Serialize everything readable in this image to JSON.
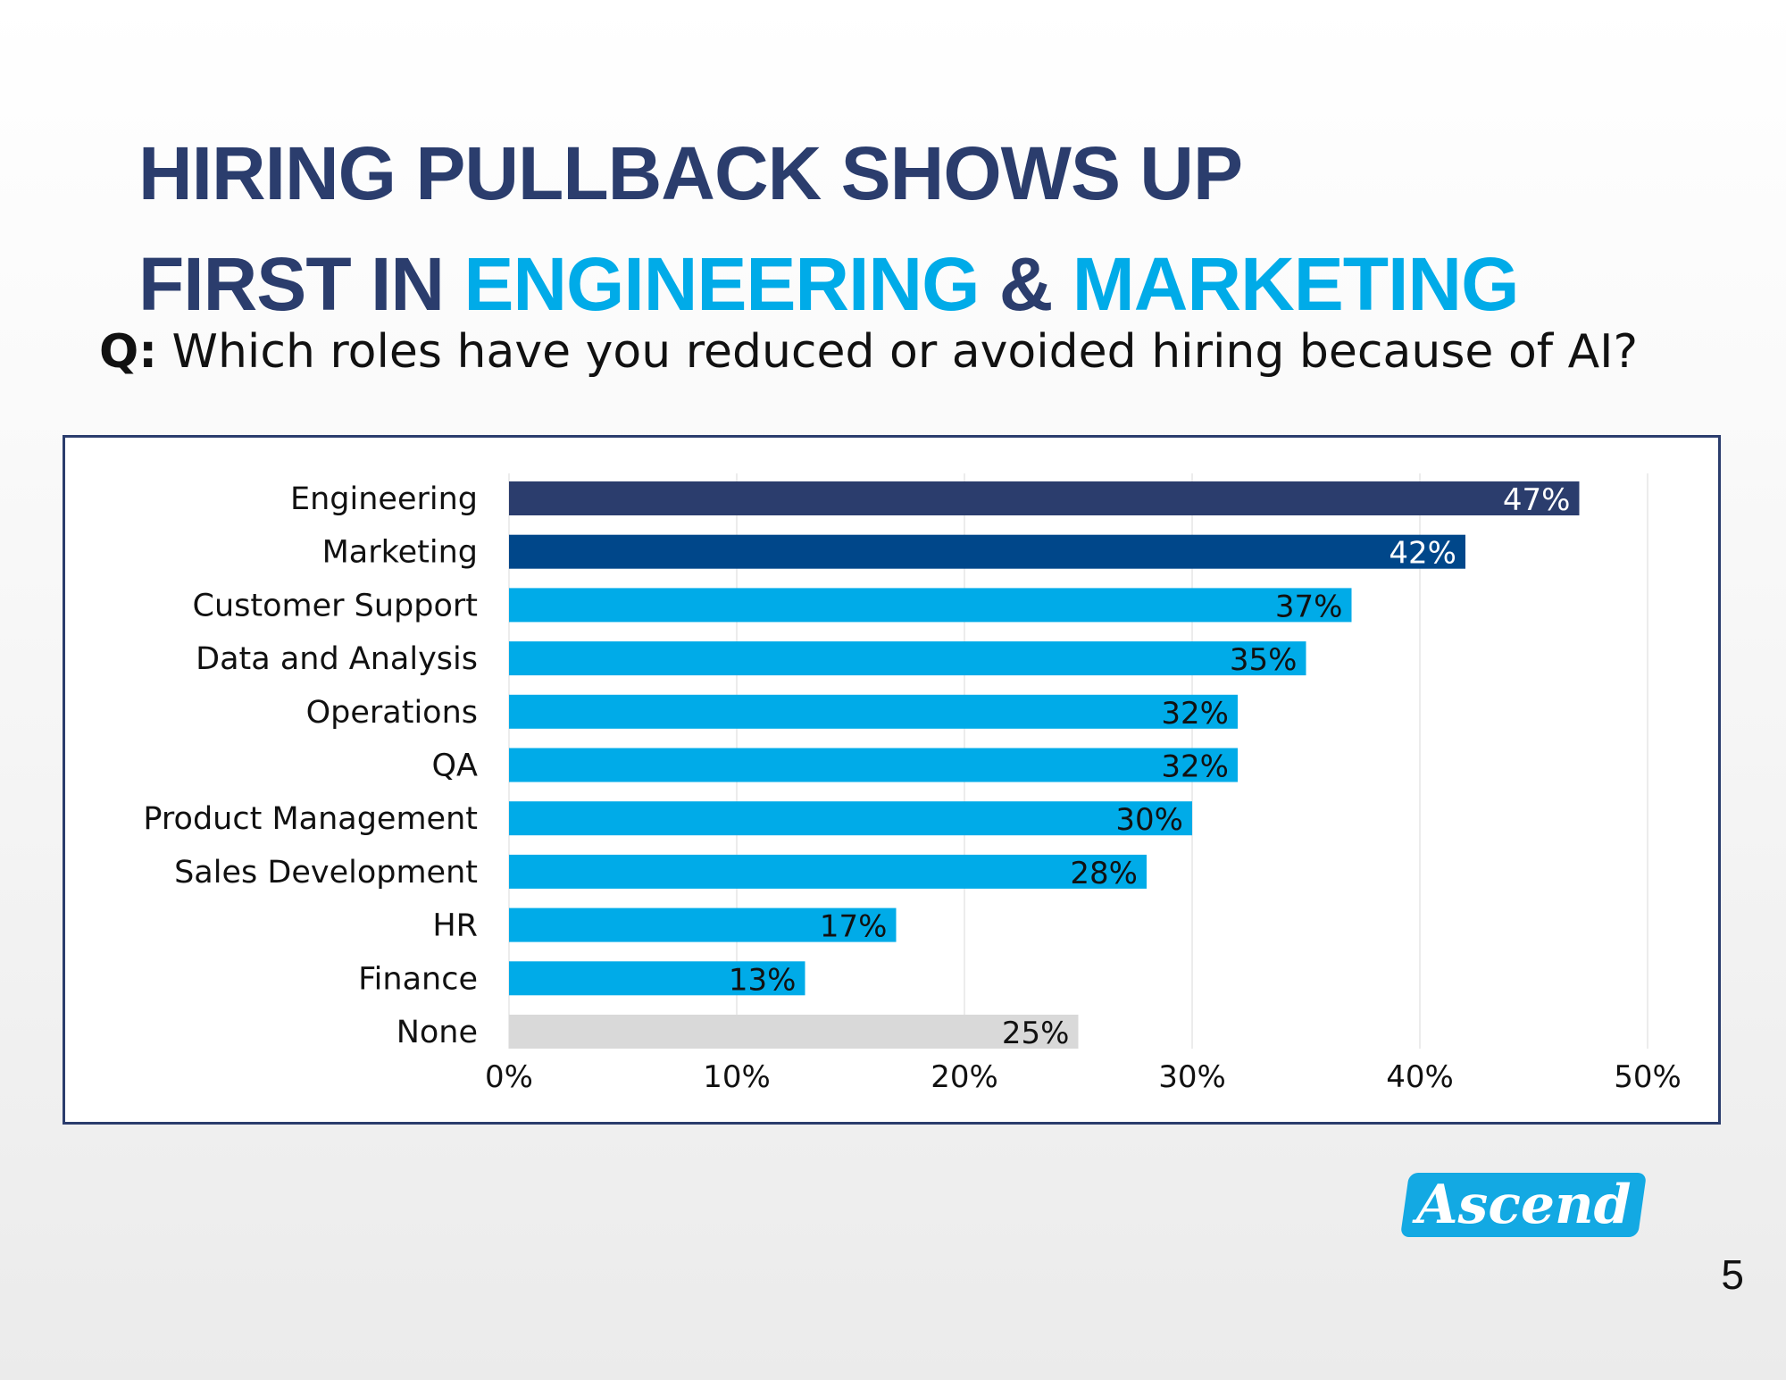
{
  "title": {
    "line1": "HIRING PULLBACK SHOWS UP",
    "line2_part1": "FIRST IN ",
    "line2_accent1": "ENGINEERING",
    "line2_part2": " & ",
    "line2_accent2": "MARKETING"
  },
  "question": {
    "prefix": "Q:",
    "text": " Which roles have you reduced or avoided hiring because of AI?"
  },
  "chart_data": {
    "type": "bar",
    "orientation": "horizontal",
    "categories": [
      "Engineering",
      "Marketing",
      "Customer Support",
      "Data and Analysis",
      "Operations",
      "QA",
      "Product Management",
      "Sales Development",
      "HR",
      "Finance",
      "None"
    ],
    "values": [
      47,
      42,
      37,
      35,
      32,
      32,
      30,
      28,
      17,
      13,
      25
    ],
    "data_labels": [
      "47%",
      "42%",
      "37%",
      "35%",
      "32%",
      "32%",
      "30%",
      "28%",
      "17%",
      "13%",
      "25%"
    ],
    "bar_colors": [
      "#2b3d6d",
      "#00478a",
      "#00abe8",
      "#00abe8",
      "#00abe8",
      "#00abe8",
      "#00abe8",
      "#00abe8",
      "#00abe8",
      "#00abe8",
      "#d9d9d9"
    ],
    "label_colors": [
      "#ffffff",
      "#ffffff",
      "#111111",
      "#111111",
      "#111111",
      "#111111",
      "#111111",
      "#111111",
      "#111111",
      "#111111",
      "#111111"
    ],
    "xlim": [
      0,
      50
    ],
    "x_ticks": [
      0,
      10,
      20,
      30,
      40,
      50
    ],
    "x_tick_labels": [
      "0%",
      "10%",
      "20%",
      "30%",
      "40%",
      "50%"
    ],
    "grid": true,
    "legend": "none",
    "title": "",
    "xlabel": "",
    "ylabel": ""
  },
  "logo": {
    "text": "Ascend"
  },
  "page_number": "5",
  "colors": {
    "navy": "#2b3d6d",
    "accent": "#00abe8",
    "dark_blue": "#00478a",
    "gray_bar": "#d9d9d9",
    "logo": "#13a9e3"
  }
}
